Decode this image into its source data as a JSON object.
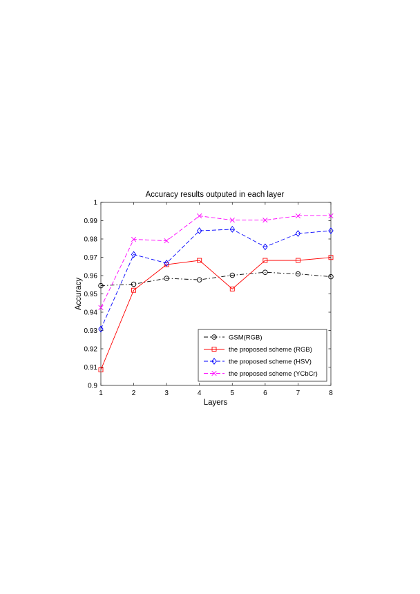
{
  "chart_data": {
    "type": "line",
    "title": "Accuracy results outputed in each layer",
    "xlabel": "Layers",
    "ylabel": "Accuracy",
    "xlim": [
      1,
      8
    ],
    "ylim": [
      0.9,
      1.0
    ],
    "x": [
      1,
      2,
      3,
      4,
      5,
      6,
      7,
      8
    ],
    "xticks": [
      "1",
      "2",
      "3",
      "4",
      "5",
      "6",
      "7",
      "8"
    ],
    "yticks": [
      "0.9",
      "0.91",
      "0.92",
      "0.93",
      "0.94",
      "0.95",
      "0.96",
      "0.97",
      "0.98",
      "0.99",
      "1"
    ],
    "grid": false,
    "legend_position": "bottom-right",
    "series": [
      {
        "name": "GSM(RGB)",
        "color": "#000000",
        "dash": "dash-dot",
        "marker": "circle",
        "values": [
          0.9545,
          0.9553,
          0.9585,
          0.9577,
          0.9602,
          0.9618,
          0.9609,
          0.9594
        ]
      },
      {
        "name": "the proposed scheme (RGB)",
        "color": "#ff0000",
        "dash": "solid",
        "marker": "square",
        "values": [
          0.9085,
          0.952,
          0.966,
          0.9683,
          0.9527,
          0.9683,
          0.9683,
          0.9699
        ]
      },
      {
        "name": "the proposed scheme (HSV)",
        "color": "#0000ff",
        "dash": "dashed",
        "marker": "diamond",
        "values": [
          0.9308,
          0.9715,
          0.9668,
          0.9845,
          0.9853,
          0.9757,
          0.983,
          0.9845
        ]
      },
      {
        "name": "the proposed scheme (YCbCr)",
        "color": "#ff00ff",
        "dash": "dashed",
        "marker": "x",
        "values": [
          0.9425,
          0.9798,
          0.979,
          0.9926,
          0.9903,
          0.9903,
          0.9926,
          0.9926
        ]
      }
    ]
  }
}
